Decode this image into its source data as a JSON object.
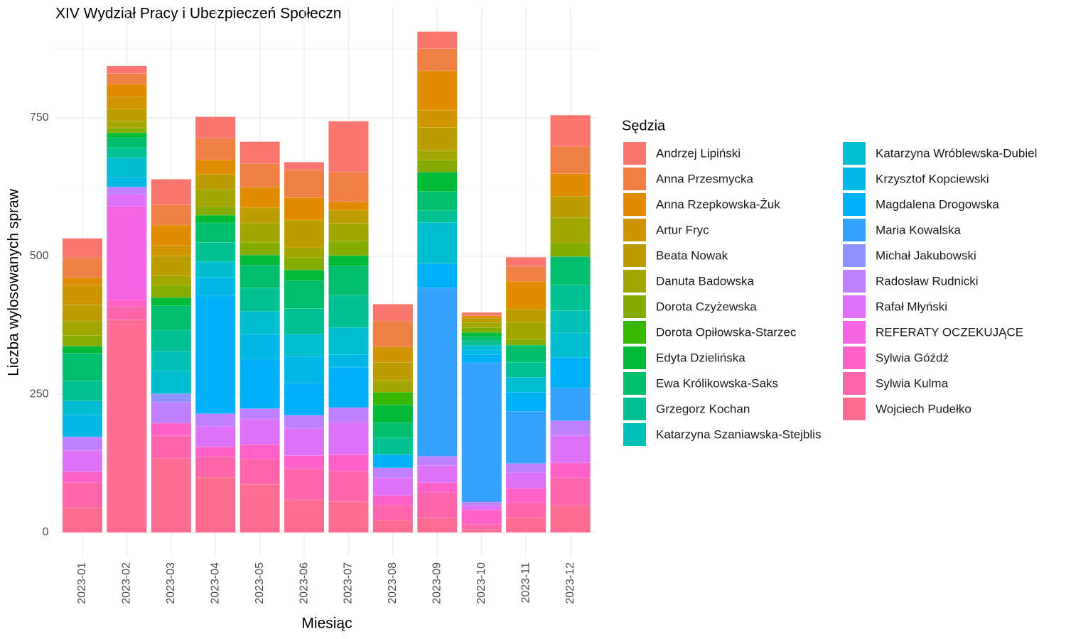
{
  "chart_data": {
    "type": "stacked_bar",
    "title": "XIV Wydział Pracy i Ubezpieczeń Społeczn",
    "x_label": "Miesiąc",
    "y_label": "Liczba wylosowanych spraw",
    "legend_title": "Sędzia",
    "legend": "right",
    "grid": true,
    "categories": [
      "2023-01",
      "2023-02",
      "2023-03",
      "2023-04",
      "2023-05",
      "2023-06",
      "2023-07",
      "2023-08",
      "2023-09",
      "2023-10",
      "2023-11",
      "2023-12"
    ],
    "ylim": [
      -45,
      950
    ],
    "yticks": [
      0,
      250,
      500,
      750
    ],
    "series": [
      {
        "name": "Andrzej Lipiński",
        "color": "#F8766D",
        "values": [
          35,
          14,
          46,
          39,
          40,
          14,
          92,
          31,
          31,
          6,
          17,
          57
        ]
      },
      {
        "name": "Anna Przesmycka",
        "color": "#EE8043",
        "values": [
          36,
          19,
          37,
          39,
          42,
          50,
          54,
          46,
          40,
          0,
          27,
          49
        ]
      },
      {
        "name": "Anna Rzepkowska-Żuk",
        "color": "#E08B00",
        "values": [
          13,
          23,
          37,
          26,
          37,
          41,
          15,
          0,
          71,
          4,
          50,
          41
        ]
      },
      {
        "name": "Artur Fryc",
        "color": "#CF9400",
        "values": [
          36,
          22,
          19,
          0,
          0,
          0,
          0,
          28,
          31,
          0,
          0,
          0
        ]
      },
      {
        "name": "Beata Nowak",
        "color": "#BB9D00",
        "values": [
          30,
          22,
          36,
          27,
          28,
          50,
          24,
          33,
          41,
          8,
          24,
          38
        ]
      },
      {
        "name": "Danuta Badowska",
        "color": "#A3A500",
        "values": [
          26,
          12,
          17,
          32,
          35,
          18,
          32,
          21,
          18,
          9,
          31,
          46
        ]
      },
      {
        "name": "Dorota Czyżewska",
        "color": "#85AD00",
        "values": [
          19,
          9,
          22,
          15,
          23,
          22,
          26,
          0,
          22,
          9,
          10,
          25
        ]
      },
      {
        "name": "Dorota Opiłowska-Starzec",
        "color": "#39B600",
        "values": [
          0,
          0,
          0,
          0,
          0,
          0,
          0,
          23,
          0,
          0,
          0,
          0
        ]
      },
      {
        "name": "Edyta Dzielińska",
        "color": "#00BA38",
        "values": [
          13,
          9,
          15,
          14,
          19,
          20,
          19,
          32,
          35,
          8,
          0,
          0
        ]
      },
      {
        "name": "Ewa Królikowska-Saks",
        "color": "#00BE6C",
        "values": [
          49,
          18,
          44,
          35,
          41,
          50,
          53,
          28,
          35,
          8,
          31,
          51
        ]
      },
      {
        "name": "Grzegorz Kochan",
        "color": "#00C094",
        "values": [
          37,
          18,
          38,
          35,
          42,
          46,
          58,
          30,
          21,
          8,
          27,
          47
        ]
      },
      {
        "name": "Katarzyna Szaniawska-Stejblis",
        "color": "#00C0B8",
        "values": [
          0,
          0,
          36,
          0,
          0,
          0,
          0,
          0,
          0,
          0,
          0,
          40
        ]
      },
      {
        "name": "Katarzyna Wróblewska-Dubiel",
        "color": "#00BDD0",
        "values": [
          25,
          35,
          41,
          28,
          41,
          40,
          49,
          0,
          74,
          8,
          27,
          44
        ]
      },
      {
        "name": "Krzysztof Kopciewski",
        "color": "#00B8E5",
        "values": [
          40,
          18,
          0,
          33,
          45,
          49,
          23,
          0,
          0,
          8,
          0,
          0
        ]
      },
      {
        "name": "Magdalena Drogowska",
        "color": "#00B0F6",
        "values": [
          0,
          0,
          0,
          214,
          90,
          58,
          73,
          24,
          45,
          15,
          35,
          56
        ]
      },
      {
        "name": "Maria Kowalska",
        "color": "#35A2FF",
        "values": [
          0,
          0,
          0,
          0,
          0,
          0,
          0,
          0,
          304,
          252,
          94,
          59
        ]
      },
      {
        "name": "Michał Jakubowski",
        "color": "#8F91FF",
        "values": [
          0,
          0,
          15,
          0,
          0,
          0,
          0,
          0,
          0,
          0,
          0,
          0
        ]
      },
      {
        "name": "Radosław Rudnicki",
        "color": "#BF80FF",
        "values": [
          25,
          13,
          38,
          23,
          19,
          24,
          27,
          18,
          17,
          6,
          17,
          27
        ]
      },
      {
        "name": "Rafał Młyński",
        "color": "#DF70F8",
        "values": [
          38,
          22,
          0,
          37,
          46,
          49,
          58,
          32,
          31,
          8,
          28,
          49
        ]
      },
      {
        "name": "REFERATY OCZEKUJĄCE",
        "color": "#F564E3",
        "values": [
          0,
          170,
          0,
          0,
          0,
          0,
          0,
          0,
          0,
          0,
          0,
          0
        ]
      },
      {
        "name": "Sylwia Góźdź",
        "color": "#FF61C9",
        "values": [
          20,
          12,
          23,
          18,
          26,
          24,
          30,
          18,
          18,
          26,
          26,
          27
        ]
      },
      {
        "name": "Sylwia Kulma",
        "color": "#FF65AC",
        "values": [
          45,
          23,
          41,
          37,
          46,
          56,
          55,
          27,
          46,
          9,
          27,
          50
        ]
      },
      {
        "name": "Wojciech Pudełko",
        "color": "#FF6C91",
        "values": [
          45,
          385,
          134,
          100,
          87,
          59,
          56,
          22,
          26,
          6,
          27,
          49
        ]
      }
    ]
  }
}
